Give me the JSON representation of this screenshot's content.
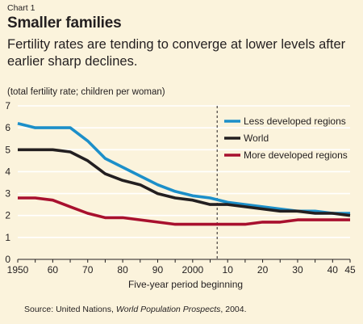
{
  "header": {
    "chart_number": "Chart 1",
    "title": "Smaller families",
    "subtitle": "Fertility rates are tending to converge at lower levels after earlier sharp declines."
  },
  "footer": {
    "source_prefix": "Source: United Nations, ",
    "source_italic": "World Population Prospects",
    "source_suffix": ", 2004."
  },
  "colors": {
    "background": "#fbf3dc",
    "less_developed": "#1c8fc9",
    "world": "#231f20",
    "more_developed": "#a8102e",
    "divider": "#231f20"
  },
  "chart_data": {
    "type": "line",
    "title": "Smaller families",
    "ylabel": "(total fertility rate; children per woman)",
    "xlabel": "Five-year period beginning",
    "ylim": [
      0,
      7
    ],
    "xlim": [
      1950,
      2045
    ],
    "yticks": [
      0,
      1,
      2,
      3,
      4,
      5,
      6,
      7
    ],
    "xticks": [
      {
        "value": 1950,
        "label": "1950"
      },
      {
        "value": 1960,
        "label": "60"
      },
      {
        "value": 1970,
        "label": "70"
      },
      {
        "value": 1980,
        "label": "80"
      },
      {
        "value": 1990,
        "label": "90"
      },
      {
        "value": 2000,
        "label": "2000"
      },
      {
        "value": 2010,
        "label": "10"
      },
      {
        "value": 2020,
        "label": "20"
      },
      {
        "value": 2030,
        "label": "30"
      },
      {
        "value": 2040,
        "label": "40"
      },
      {
        "value": 2045,
        "label": "45"
      }
    ],
    "projection_start": 2007,
    "grid": "horizontal",
    "legend_position": "top-right",
    "x": [
      1950,
      1955,
      1960,
      1965,
      1970,
      1975,
      1980,
      1985,
      1990,
      1995,
      2000,
      2005,
      2010,
      2015,
      2020,
      2025,
      2030,
      2035,
      2040,
      2045
    ],
    "series": [
      {
        "name": "Less developed regions",
        "color": "#1c8fc9",
        "values": [
          6.2,
          6.0,
          6.0,
          6.0,
          5.4,
          4.6,
          4.2,
          3.8,
          3.4,
          3.1,
          2.9,
          2.8,
          2.6,
          2.5,
          2.4,
          2.3,
          2.2,
          2.2,
          2.1,
          2.1
        ]
      },
      {
        "name": "World",
        "color": "#231f20",
        "values": [
          5.0,
          5.0,
          5.0,
          4.9,
          4.5,
          3.9,
          3.6,
          3.4,
          3.0,
          2.8,
          2.7,
          2.5,
          2.5,
          2.4,
          2.3,
          2.2,
          2.2,
          2.1,
          2.1,
          2.0
        ]
      },
      {
        "name": "More developed regions",
        "color": "#a8102e",
        "values": [
          2.8,
          2.8,
          2.7,
          2.4,
          2.1,
          1.9,
          1.9,
          1.8,
          1.7,
          1.6,
          1.6,
          1.6,
          1.6,
          1.6,
          1.7,
          1.7,
          1.8,
          1.8,
          1.8,
          1.8
        ]
      }
    ]
  }
}
